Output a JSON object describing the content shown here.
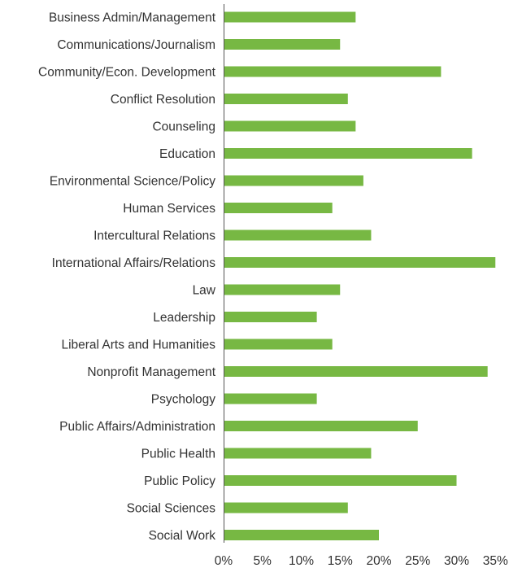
{
  "chart_data": {
    "type": "bar",
    "orientation": "horizontal",
    "title": "",
    "xlabel": "",
    "ylabel": "",
    "xlim": [
      0,
      35
    ],
    "grid": false,
    "legend": "none",
    "bar_color": "#77B843",
    "categories": [
      "Business Admin/Management",
      "Communications/Journalism",
      "Community/Econ. Development",
      "Conflict Resolution",
      "Counseling",
      "Education",
      "Environmental Science/Policy",
      "Human Services",
      "Intercultural Relations",
      "International Affairs/Relations",
      "Law",
      "Leadership",
      "Liberal Arts and Humanities",
      "Nonprofit Management",
      "Psychology",
      "Public Affairs/Administration",
      "Public Health",
      "Public Policy",
      "Social Sciences",
      "Social Work"
    ],
    "values": [
      17,
      15,
      28,
      16,
      17,
      32,
      18,
      14,
      19,
      35,
      15,
      12,
      14,
      34,
      12,
      25,
      19,
      30,
      16,
      20
    ],
    "x_ticks": [
      {
        "value": 0,
        "label": "0%"
      },
      {
        "value": 5,
        "label": "5%"
      },
      {
        "value": 10,
        "label": "10%"
      },
      {
        "value": 15,
        "label": "15%"
      },
      {
        "value": 20,
        "label": "20%"
      },
      {
        "value": 25,
        "label": "25%"
      },
      {
        "value": 30,
        "label": "30%"
      },
      {
        "value": 35,
        "label": "35%"
      }
    ]
  }
}
